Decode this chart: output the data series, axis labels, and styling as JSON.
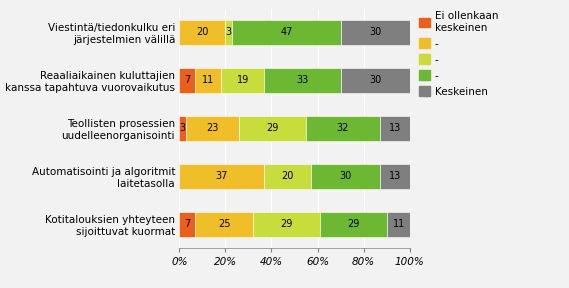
{
  "categories": [
    "Viestintä/tiedonkulku eri\njärjestelmien välillä",
    "Reaaliaikainen kuluttajien\nkanssa tapahtuva vuorovaikutus",
    "Teollisten prosessien\nuudelleenorganisointi",
    "Automatisointi ja algoritmit\nlaitetasolla",
    "Kotitalouksien yhteyteen\nsijoittuvat kuormat"
  ],
  "series": [
    {
      "label": "Ei ollenkaan\nkeskeinen",
      "color": "#E8601C",
      "values": [
        0,
        7,
        3,
        0,
        7
      ]
    },
    {
      "label": "-",
      "color": "#F0BE28",
      "values": [
        20,
        11,
        23,
        37,
        25
      ]
    },
    {
      "label": "-",
      "color": "#C8DC3C",
      "values": [
        3,
        19,
        29,
        20,
        29
      ]
    },
    {
      "label": "-",
      "color": "#6CB832",
      "values": [
        47,
        33,
        32,
        30,
        29
      ]
    },
    {
      "label": "Keskeinen",
      "color": "#7F7F7F",
      "values": [
        30,
        30,
        13,
        13,
        11
      ]
    }
  ],
  "legend_labels": [
    "Ei ollenkaan\nkeskeinen",
    "-",
    "-",
    "-",
    "Keskeinen"
  ],
  "legend_colors": [
    "#E8601C",
    "#F0BE28",
    "#C8DC3C",
    "#6CB832",
    "#7F7F7F"
  ],
  "xtick_labels": [
    "0%",
    "20%",
    "40%",
    "60%",
    "80%",
    "100%"
  ],
  "xtick_vals": [
    0,
    20,
    40,
    60,
    80,
    100
  ],
  "bar_label_fontsize": 7.0,
  "label_fontsize": 7.5,
  "legend_fontsize": 7.5,
  "bar_height": 0.52,
  "fig_width": 5.69,
  "fig_height": 2.88,
  "dpi": 100,
  "fig_bg": "#F2F2F2",
  "ax_bg": "#F2F2F2"
}
